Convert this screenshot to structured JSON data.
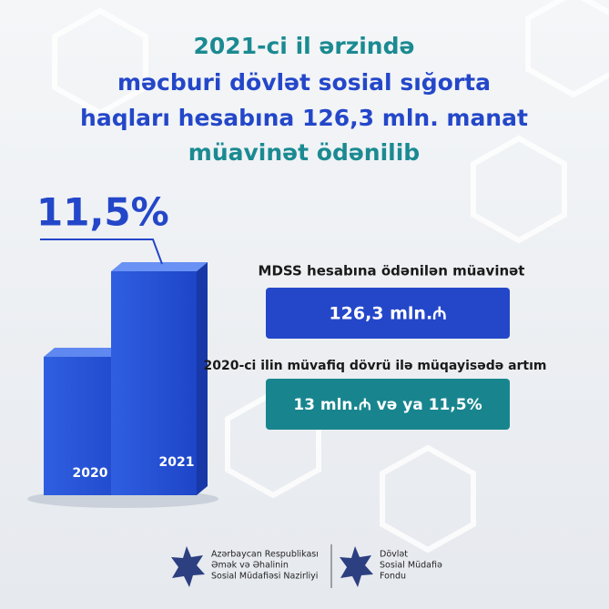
{
  "header": {
    "title_lines": [
      "2021-ci il ərzində",
      "məcburi dövlət sosial sığorta",
      "haqları hesabına 126,3 mln. manat",
      "müavinət ödənilib"
    ]
  },
  "chart": {
    "highlight": "11,5%",
    "years": [
      "2020",
      "2021"
    ]
  },
  "info": {
    "label1": "MDSS hesabına ödənilən müavinət",
    "box1": "126,3 mln.₼",
    "label2": "2020-ci ilin müvafiq dövrü ilə müqayisədə artım",
    "box2": "13 mln.₼  və ya 11,5%"
  },
  "footer": {
    "ministry": [
      "Azərbaycan Respublikası",
      "Əmək və Əhalinin",
      "Sosial Müdafiəsi Nazirliyi"
    ],
    "fund": [
      "Dövlət",
      "Sosial Müdafiə",
      "Fondu"
    ]
  }
}
